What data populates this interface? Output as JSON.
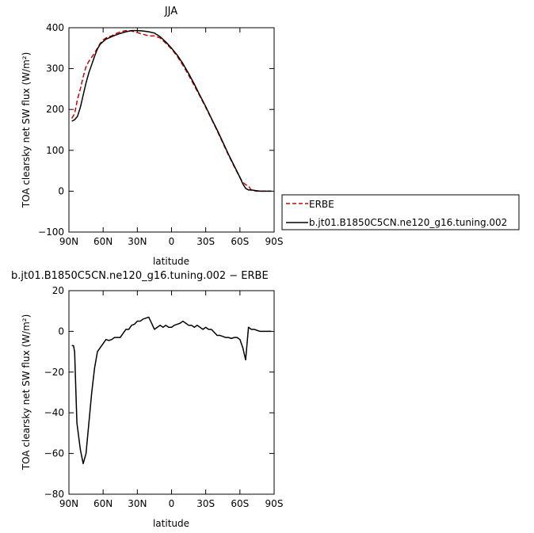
{
  "chart_data": [
    {
      "type": "line",
      "title": "JJA",
      "xlabel": "latitude",
      "ylabel": "TOA clearsky net SW flux (W/m²)",
      "ylim": [
        -100,
        400
      ],
      "yticks": [
        -100,
        0,
        100,
        200,
        300,
        400
      ],
      "xlim": [
        90,
        -90
      ],
      "xticks": [
        90,
        60,
        30,
        0,
        -30,
        -60,
        -90
      ],
      "xtick_labels": [
        "90N",
        "60N",
        "30N",
        "0",
        "30S",
        "60S",
        "90S"
      ],
      "legend_placement": "right",
      "series": [
        {
          "name": "ERBE",
          "color": "#cc0000",
          "dash": "dashed",
          "x": [
            87.5,
            85,
            82.5,
            80,
            77.5,
            75,
            72.5,
            70,
            67.5,
            65,
            62.5,
            60,
            57.5,
            55,
            52.5,
            50,
            45,
            40,
            35,
            30,
            25,
            20,
            15,
            10,
            5,
            0,
            -5,
            -10,
            -15,
            -20,
            -25,
            -30,
            -35,
            -40,
            -45,
            -50,
            -55,
            -60,
            -62.5,
            -65,
            -67.5,
            -70,
            -72.5,
            -75,
            -77.5,
            -80,
            -82.5,
            -85,
            -87.5
          ],
          "y": [
            178,
            190,
            225,
            250,
            280,
            305,
            318,
            328,
            338,
            350,
            362,
            370,
            375,
            378,
            380,
            384,
            390,
            393,
            392,
            388,
            384,
            380,
            380,
            375,
            362,
            348,
            330,
            308,
            284,
            258,
            232,
            205,
            177,
            148,
            118,
            88,
            60,
            33,
            22,
            16,
            13,
            2,
            1,
            0,
            0,
            0,
            0,
            0,
            0
          ]
        },
        {
          "name": "b.jt01.B1850C5CN.ne120_g16.tuning.002",
          "color": "#000000",
          "dash": "solid",
          "x": [
            87.5,
            85,
            82.5,
            80,
            77.5,
            75,
            72.5,
            70,
            67.5,
            65,
            62.5,
            60,
            57.5,
            55,
            52.5,
            50,
            45,
            40,
            35,
            30,
            25,
            20,
            15,
            10,
            5,
            0,
            -5,
            -10,
            -15,
            -20,
            -25,
            -30,
            -35,
            -40,
            -45,
            -50,
            -55,
            -60,
            -62.5,
            -65,
            -67.5,
            -70,
            -72.5,
            -75,
            -77.5,
            -80,
            -82.5,
            -85,
            -87.5
          ],
          "y": [
            171,
            175,
            183,
            205,
            235,
            265,
            290,
            310,
            330,
            348,
            360,
            366,
            372,
            375,
            378,
            381,
            386,
            390,
            393,
            393,
            392,
            390,
            387,
            378,
            365,
            350,
            333,
            312,
            288,
            262,
            234,
            207,
            178,
            150,
            120,
            90,
            62,
            34,
            18,
            7,
            3,
            3,
            2,
            1,
            0,
            0,
            0,
            0,
            0
          ]
        }
      ]
    },
    {
      "type": "line",
      "title": "b.jt01.B1850C5CN.ne120_g16.tuning.002 − ERBE",
      "xlabel": "latitude",
      "ylabel": "TOA clearsky net SW flux (W/m²)",
      "ylim": [
        -80,
        20
      ],
      "yticks": [
        -80,
        -60,
        -40,
        -20,
        0,
        20
      ],
      "xlim": [
        90,
        -90
      ],
      "xticks": [
        90,
        60,
        30,
        0,
        -30,
        -60,
        -90
      ],
      "xtick_labels": [
        "90N",
        "60N",
        "30N",
        "0",
        "30S",
        "60S",
        "90S"
      ],
      "series": [
        {
          "name": "",
          "color": "#000000",
          "dash": "solid",
          "x": [
            87.5,
            86,
            85,
            83,
            80,
            77.5,
            75,
            72.5,
            70,
            67.5,
            65,
            62.5,
            60,
            57.5,
            55,
            52.5,
            50,
            47.5,
            45,
            42.5,
            40,
            37.5,
            35,
            32.5,
            30,
            27.5,
            25,
            22.5,
            20,
            17.5,
            15,
            12.5,
            10,
            7.5,
            5,
            2.5,
            0,
            -2.5,
            -5,
            -7.5,
            -10,
            -12.5,
            -15,
            -17.5,
            -20,
            -22.5,
            -25,
            -27.5,
            -30,
            -32.5,
            -35,
            -40,
            -42.5,
            -45,
            -47.5,
            -50,
            -52.5,
            -55,
            -57.5,
            -60,
            -62.5,
            -65,
            -67.5,
            -70,
            -72.5,
            -75,
            -77.5,
            -80,
            -82.5,
            -85,
            -87.5
          ],
          "y": [
            -7,
            -7,
            -10,
            -45,
            -58,
            -65,
            -60,
            -45,
            -30,
            -18,
            -10,
            -8,
            -6,
            -4,
            -4.5,
            -4,
            -3,
            -3,
            -3,
            -1,
            1,
            1,
            3,
            3.5,
            5,
            5,
            6,
            6.5,
            7,
            4,
            1,
            2,
            3,
            2,
            3,
            2,
            2,
            3,
            3.5,
            4,
            5,
            4,
            3,
            3,
            2,
            3,
            2,
            1,
            2,
            1,
            1,
            -2,
            -2,
            -2.5,
            -3,
            -3,
            -3.5,
            -3,
            -3,
            -4,
            -8,
            -14,
            2,
            1,
            1,
            0.5,
            0,
            0,
            0,
            0,
            0
          ]
        }
      ]
    }
  ]
}
